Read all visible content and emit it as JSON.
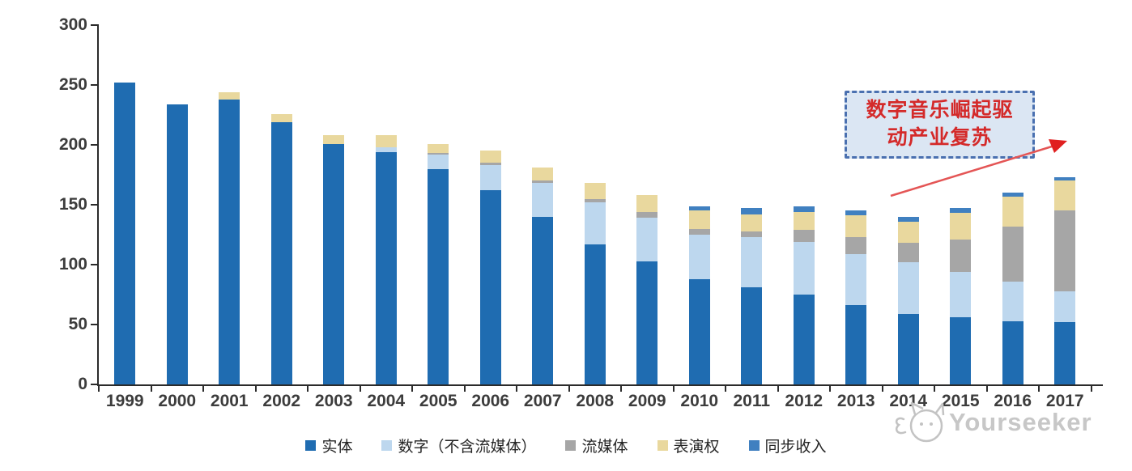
{
  "chart_data": {
    "type": "bar",
    "stacked": true,
    "title": "",
    "xlabel": "",
    "ylabel": "",
    "ylim": [
      0,
      300
    ],
    "yticks": [
      0,
      50,
      100,
      150,
      200,
      250,
      300
    ],
    "grid": false,
    "legend_position": "bottom",
    "categories": [
      "1999",
      "2000",
      "2001",
      "2002",
      "2003",
      "2004",
      "2005",
      "2006",
      "2007",
      "2008",
      "2009",
      "2010",
      "2011",
      "2012",
      "2013",
      "2014",
      "2015",
      "2016",
      "2017"
    ],
    "series": [
      {
        "name": "实体",
        "color": "#1f6cb1",
        "values": [
          252,
          234,
          238,
          219,
          201,
          194,
          180,
          162,
          140,
          117,
          103,
          88,
          81,
          75,
          66,
          59,
          56,
          53,
          52
        ]
      },
      {
        "name": "数字（不含流媒体）",
        "color": "#bdd7ee",
        "values": [
          0,
          0,
          0,
          0,
          0,
          4,
          12,
          21,
          28,
          35,
          36,
          37,
          42,
          44,
          43,
          43,
          38,
          33,
          26
        ]
      },
      {
        "name": "流媒体",
        "color": "#a6a6a6",
        "values": [
          0,
          0,
          0,
          0,
          0,
          0,
          1,
          2,
          2,
          3,
          5,
          5,
          5,
          10,
          14,
          16,
          27,
          46,
          67
        ]
      },
      {
        "name": "表演权",
        "color": "#e9d89e",
        "values": [
          0,
          0,
          6,
          7,
          7,
          10,
          8,
          10,
          11,
          13,
          14,
          15,
          14,
          15,
          18,
          18,
          22,
          25,
          25
        ]
      },
      {
        "name": "同步收入",
        "color": "#4080c0",
        "values": [
          0,
          0,
          0,
          0,
          0,
          0,
          0,
          0,
          0,
          0,
          0,
          4,
          5,
          5,
          4,
          4,
          4,
          3,
          3
        ]
      }
    ],
    "totals": [
      252,
      234,
      244,
      226,
      208,
      208,
      201,
      195,
      181,
      168,
      158,
      149,
      147,
      149,
      145,
      140,
      147,
      160,
      173
    ]
  },
  "annotation": {
    "line1": "数字音乐崛起驱",
    "line2": "动产业复苏",
    "text_color": "#d42a2a",
    "box_fill": "#dbe6f3",
    "border_color": "#4a70b0",
    "arrow_color": "#e45555"
  },
  "watermark": {
    "text": "Yourseeker",
    "logo": "yourseeker-cat-logo-icon",
    "color": "#c7c7c7"
  },
  "axis": {
    "color": "#2b2b2b",
    "label_color": "#3c3c3c"
  }
}
